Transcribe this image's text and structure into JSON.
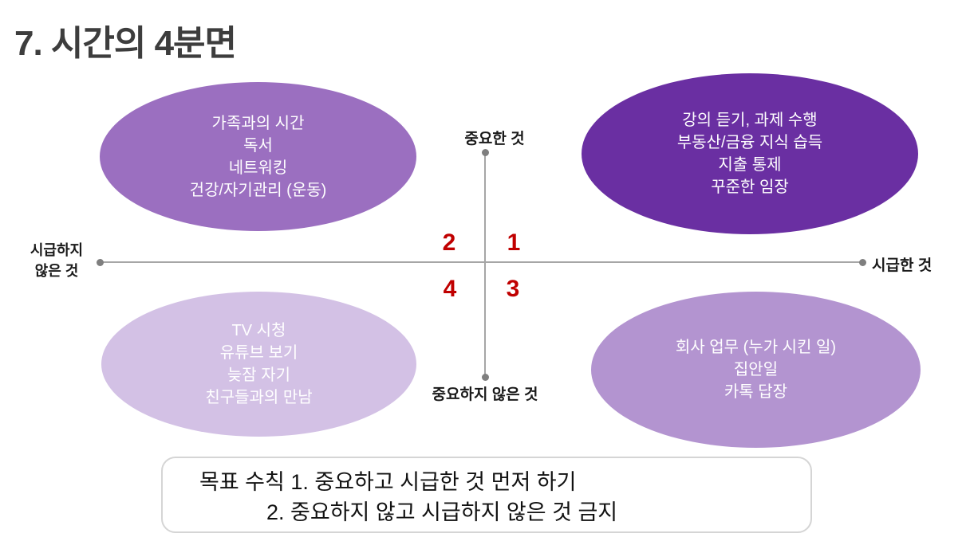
{
  "title": "7. 시간의 4분면",
  "axes": {
    "top_label": "중요한 것",
    "bottom_label": "중요하지 않은 것",
    "left_label": [
      "시급하지",
      "않은 것"
    ],
    "right_label": "시급한 것"
  },
  "quadrant_numbers": {
    "q1": "1",
    "q2": "2",
    "q3": "3",
    "q4": "4"
  },
  "quadrants": {
    "q2_important_not_urgent": {
      "color": "#9b6fc0",
      "items": [
        "가족과의 시간",
        "독서",
        "네트워킹",
        "건강/자기관리 (운동)"
      ]
    },
    "q1_important_urgent": {
      "color": "#6a2fa2",
      "items": [
        "강의 듣기, 과제 수행",
        "부동산/금융 지식 습득",
        "지출 통제",
        "꾸준한 임장"
      ]
    },
    "q4_not_important_not_urgent": {
      "color": "#d3c1e5",
      "items": [
        "TV 시청",
        "유튜브 보기",
        "늦잠 자기",
        "친구들과의 만남"
      ]
    },
    "q3_not_important_urgent": {
      "color": "#b394d0",
      "items": [
        "회사 업무 (누가 시킨 일)",
        "집안일",
        "카톡 답장"
      ]
    }
  },
  "rules_box": {
    "line1": "목표 수칙 1. 중요하고 시급한 것 먼저 하기",
    "line2": "2. 중요하지 않고 시급하지 않은 것 금지"
  },
  "colors": {
    "number_red": "#c00000",
    "axis_line": "#a6a6a6",
    "axis_dot": "#7f7f7f",
    "title_text": "#3d3d3d",
    "box_border": "#d5d5d5"
  }
}
